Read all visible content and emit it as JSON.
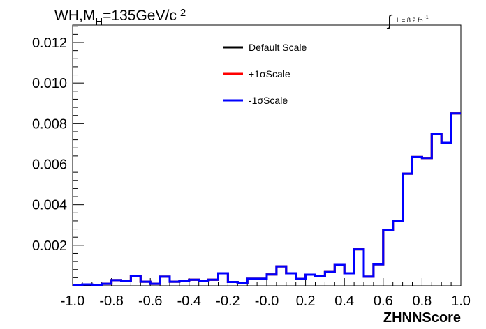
{
  "chart_data": {
    "type": "histogram",
    "title_parts": {
      "main": "WH,M",
      "sub": "H",
      "rest": "=135GeV/c",
      "sup": "2"
    },
    "lumi_label": {
      "prefix": "L = 8.2 fb",
      "sup": "-1",
      "integral_symbol": "∫"
    },
    "xlabel": "ZHNNScore",
    "ylabel": "",
    "xlim": [
      -1.0,
      1.0
    ],
    "ylim": [
      0,
      0.01286
    ],
    "x_ticks": [
      "-1.0",
      "-0.8",
      "-0.6",
      "-0.4",
      "-0.2",
      "-0.0",
      "0.2",
      "0.4",
      "0.6",
      "0.8",
      "1.0"
    ],
    "x_tick_values": [
      -1.0,
      -0.8,
      -0.6,
      -0.4,
      -0.2,
      0.0,
      0.2,
      0.4,
      0.6,
      0.8,
      1.0
    ],
    "y_ticks": [
      "0.002",
      "0.004",
      "0.006",
      "0.008",
      "0.010",
      "0.012"
    ],
    "y_tick_values": [
      0.002,
      0.004,
      0.006,
      0.008,
      0.01,
      0.012
    ],
    "bins": 40,
    "bin_edges_range": [
      -1.0,
      1.0
    ],
    "legend_position": "top-center",
    "series": [
      {
        "name": "Default Scale",
        "color": "#000000",
        "values": [
          2e-05,
          7e-05,
          3e-05,
          0.0001,
          0.00028,
          0.00024,
          0.00048,
          0.0002,
          0.0001,
          0.00045,
          0.0002,
          0.00024,
          0.0003,
          0.00024,
          0.0003,
          0.00062,
          0.00019,
          0.00012,
          0.00035,
          0.00035,
          0.00056,
          0.00096,
          0.00062,
          0.00034,
          0.00055,
          0.00048,
          0.00068,
          0.00103,
          0.00062,
          0.0018,
          0.00045,
          0.00106,
          0.00277,
          0.0032,
          0.00553,
          0.00635,
          0.0063,
          0.00748,
          0.00705,
          0.0085
        ]
      },
      {
        "name": "+1σScale",
        "color": "#ff0000",
        "values": [
          2e-05,
          7e-05,
          3e-05,
          0.0001,
          0.00028,
          0.00024,
          0.00048,
          0.0002,
          0.0001,
          0.00045,
          0.0002,
          0.00024,
          0.0003,
          0.00024,
          0.0003,
          0.00062,
          0.00019,
          0.00012,
          0.00035,
          0.00035,
          0.00056,
          0.00096,
          0.00062,
          0.00034,
          0.00055,
          0.00048,
          0.00068,
          0.00103,
          0.00062,
          0.0018,
          0.00045,
          0.00106,
          0.00277,
          0.0032,
          0.00553,
          0.00635,
          0.0063,
          0.00748,
          0.00705,
          0.0085
        ]
      },
      {
        "name": "-1σScale",
        "color": "#0000ff",
        "values": [
          2e-05,
          7e-05,
          3e-05,
          0.0001,
          0.00028,
          0.00024,
          0.00048,
          0.0002,
          0.0001,
          0.00045,
          0.0002,
          0.00024,
          0.0003,
          0.00024,
          0.0003,
          0.00062,
          0.00019,
          0.00012,
          0.00035,
          0.00035,
          0.00056,
          0.00096,
          0.00062,
          0.00034,
          0.00055,
          0.00048,
          0.00068,
          0.00103,
          0.00062,
          0.0018,
          0.00045,
          0.00106,
          0.00277,
          0.0032,
          0.00553,
          0.00635,
          0.0063,
          0.00748,
          0.00705,
          0.0085
        ]
      }
    ]
  }
}
